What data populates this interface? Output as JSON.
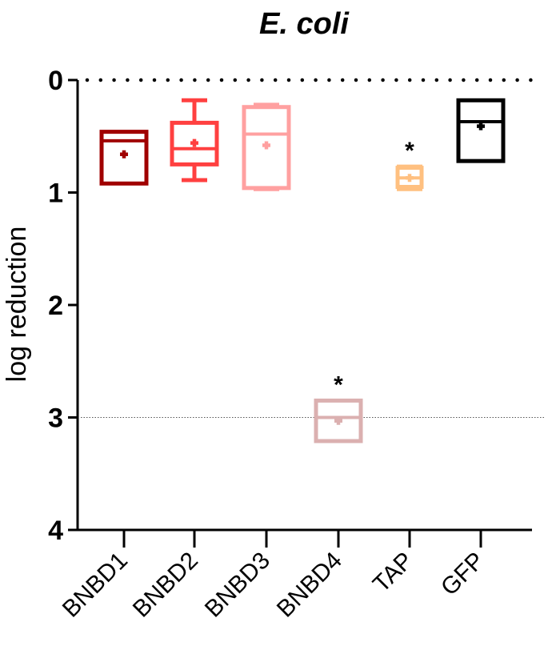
{
  "chart_data": {
    "type": "box",
    "title": "E. coli",
    "xlabel": "",
    "ylabel": "log reduction",
    "ylim": [
      0,
      4
    ],
    "y_inverted": true,
    "yticks": [
      "0",
      "1",
      "2",
      "3",
      "4"
    ],
    "grid": false,
    "legend": null,
    "categories": [
      "BNBD1",
      "BNBD2",
      "BNBD3",
      "BNBD4",
      "TAP",
      "GFP"
    ],
    "reference_lines": [
      {
        "y": 0,
        "style": "dotted-heavy",
        "color": "#000000"
      },
      {
        "y": 3,
        "style": "dotted-thin",
        "color": "#555555"
      }
    ],
    "series": [
      {
        "name": "BNBD1",
        "color": "#a00000",
        "whisker_low": 0.46,
        "q1": 0.46,
        "median": 0.54,
        "q3": 0.92,
        "whisker_high": 0.92,
        "mean": 0.66,
        "annotation": ""
      },
      {
        "name": "BNBD2",
        "color": "#ff4040",
        "whisker_low": 0.18,
        "q1": 0.38,
        "median": 0.61,
        "q3": 0.75,
        "whisker_high": 0.89,
        "mean": 0.56,
        "annotation": ""
      },
      {
        "name": "BNBD3",
        "color": "#ffa0a0",
        "whisker_low": 0.22,
        "q1": 0.24,
        "median": 0.48,
        "q3": 0.96,
        "whisker_high": 0.97,
        "mean": 0.58,
        "annotation": ""
      },
      {
        "name": "BNBD4",
        "color": "#dbb0b0",
        "whisker_low": 2.85,
        "q1": 2.85,
        "median": 3.0,
        "q3": 3.21,
        "whisker_high": 3.21,
        "mean": 3.03,
        "annotation": "*"
      },
      {
        "name": "TAP",
        "color": "#ffc080",
        "whisker_low": 0.77,
        "q1": 0.78,
        "median": 0.87,
        "q3": 0.95,
        "whisker_high": 0.97,
        "mean": 0.87,
        "annotation": "*"
      },
      {
        "name": "GFP",
        "color": "#000000",
        "whisker_low": 0.18,
        "q1": 0.18,
        "median": 0.37,
        "q3": 0.72,
        "whisker_high": 0.72,
        "mean": 0.41,
        "annotation": ""
      }
    ]
  }
}
